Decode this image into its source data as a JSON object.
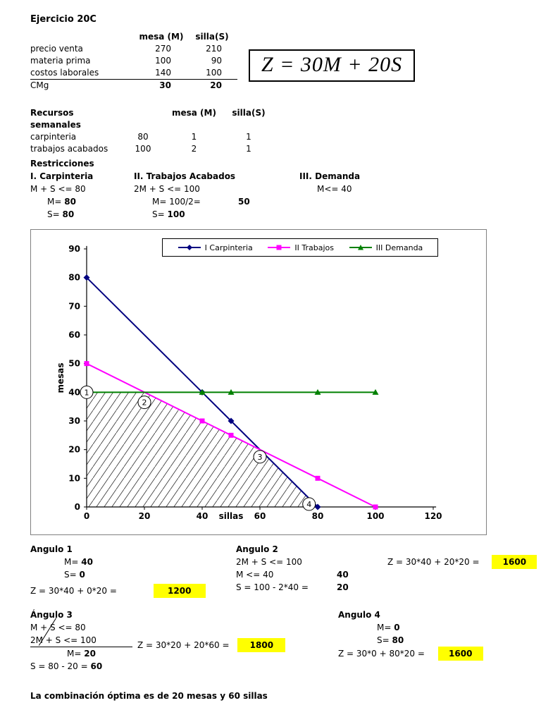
{
  "title": "Ejercicio 20C",
  "formula": "Z = 30M + 20S",
  "cost_table": {
    "col_headers": [
      "mesa (M)",
      "silla(S)"
    ],
    "rows": [
      {
        "label": "precio venta",
        "m": "270",
        "s": "210"
      },
      {
        "label": "materia prima",
        "m": "100",
        "s": "90"
      },
      {
        "label": "costos laborales",
        "m": "140",
        "s": "100"
      },
      {
        "label": "CMg",
        "m": "30",
        "s": "20"
      }
    ]
  },
  "resources": {
    "title": "Recursos semanales",
    "col_headers": [
      "mesa (M)",
      "silla(S)"
    ],
    "rows": [
      {
        "label": "carpinteria",
        "total": "80",
        "m": "1",
        "s": "1"
      },
      {
        "label": "trabajos acabados",
        "total": "100",
        "m": "2",
        "s": "1"
      }
    ]
  },
  "restricciones": {
    "title": "Restricciones",
    "c1_title": "I. Carpinteria",
    "c1_eq": "M + S <= 80",
    "c1_m_label": "M=",
    "c1_m": "80",
    "c1_s_label": "S=",
    "c1_s": "80",
    "c2_title": "II. Trabajos Acabados",
    "c2_eq": "2M + S <= 100",
    "c2_m_label": "M= 100/2=",
    "c2_m": "50",
    "c2_s_label": "S=",
    "c2_s": "100",
    "c3_title": "III. Demanda",
    "c3_eq": "M<= 40"
  },
  "chart_data": {
    "type": "line",
    "xlabel": "sillas",
    "ylabel": "mesas",
    "xlim": [
      0,
      120
    ],
    "ylim": [
      0,
      90
    ],
    "xticks": [
      0,
      20,
      40,
      60,
      80,
      100,
      120
    ],
    "yticks": [
      0,
      10,
      20,
      30,
      40,
      50,
      60,
      70,
      80,
      90
    ],
    "legend_position": "top-center",
    "grid": false,
    "series": [
      {
        "name": "I Carpinteria",
        "color": "#000080",
        "marker": "diamond",
        "points": [
          [
            0,
            80
          ],
          [
            40,
            40
          ],
          [
            50,
            30
          ],
          [
            80,
            0
          ]
        ]
      },
      {
        "name": "II Trabajos",
        "color": "#FF00FF",
        "marker": "square",
        "points": [
          [
            0,
            50
          ],
          [
            40,
            30
          ],
          [
            50,
            25
          ],
          [
            80,
            10
          ],
          [
            100,
            0
          ]
        ]
      },
      {
        "name": "III Demanda",
        "color": "#008000",
        "marker": "triangle",
        "points": [
          [
            0,
            40
          ],
          [
            40,
            40
          ],
          [
            50,
            40
          ],
          [
            80,
            40
          ],
          [
            100,
            40
          ]
        ]
      }
    ],
    "feasible_region": {
      "hatched": true,
      "vertices": [
        [
          0,
          0
        ],
        [
          0,
          40
        ],
        [
          20,
          40
        ],
        [
          60,
          20
        ],
        [
          80,
          0
        ]
      ]
    },
    "corner_labels": [
      {
        "label": "1",
        "at": [
          0,
          40
        ]
      },
      {
        "label": "2",
        "at": [
          20,
          36.5
        ]
      },
      {
        "label": "3",
        "at": [
          60,
          17.5
        ]
      },
      {
        "label": "4",
        "at": [
          77,
          1
        ]
      }
    ]
  },
  "angulos": {
    "a1": {
      "title": "Angulo 1",
      "m_label": "M=",
      "m": "40",
      "s_label": "S=",
      "s": "0",
      "z_eq": "Z = 30*40 + 0*20 =",
      "z": "1200"
    },
    "a2": {
      "title": "Angulo 2",
      "eq1": "2M + S <= 100",
      "eq2": "M <= 40",
      "eq2_val": "40",
      "eq3": "S = 100 - 2*40 =",
      "eq3_val": "20",
      "z_eq": "Z = 30*40 + 20*20 =",
      "z": "1600"
    },
    "a3": {
      "title": "Ángulo 3",
      "eq1": "M  + S <= 80",
      "eq2": "2M + S <= 100",
      "m_label": "M=",
      "m": "20",
      "s_eq": "S = 80 - 20 =",
      "s": "60",
      "z_eq": "Z = 30*20 + 20*60 =",
      "z": "1800"
    },
    "a4": {
      "title": "Angulo 4",
      "m_label": "M=",
      "m": "0",
      "s_label": "S=",
      "s": "80",
      "z_eq": "Z = 30*0 + 80*20 =",
      "z": "1600"
    }
  },
  "conclusion": "La combinación óptima es de 20 mesas y 60 sillas",
  "colors": {
    "highlight": "#FFFF00",
    "carpinteria": "#000080",
    "trabajos": "#FF00FF",
    "demanda": "#008000"
  }
}
